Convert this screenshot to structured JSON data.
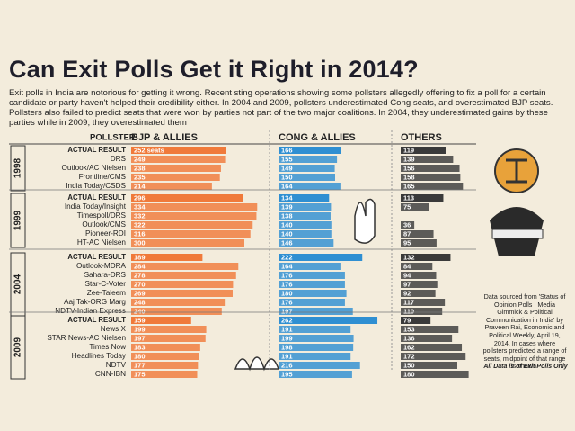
{
  "chart_data": {
    "type": "bar",
    "title": "Can Exit Polls Get it Right in 2014?",
    "subtitle": "Exit polls in India are notorious for getting it wrong. Recent sting operations showing some pollsters allegedly offering to fix a poll for a certain candidate or party haven't helped their credibility either. In 2004 and 2009, pollsters underestimated Cong seats, and overestimated BJP seats. Pollsters also failed to predict seats that were won by parties not part of the two major coalitions. In 2004, they underestimated gains by these parties while in 2009, they overestimated them",
    "column_header": "POLLSTER",
    "series": [
      {
        "name": "BJP & ALLIES",
        "color": "#f07a3a"
      },
      {
        "name": "CONG & ALLIES",
        "color": "#2f8fd2"
      },
      {
        "name": "OTHERS",
        "color": "#3a3a3a"
      }
    ],
    "groups": [
      {
        "label": "1998",
        "rows": [
          {
            "pollster": "ACTUAL RESULT",
            "values": [
              252,
              166,
              119
            ],
            "value_labels": [
              "252 seats",
              "166",
              "119"
            ]
          },
          {
            "pollster": "DRS",
            "values": [
              249,
              155,
              139
            ]
          },
          {
            "pollster": "Outlook/AC Nielsen",
            "values": [
              238,
              149,
              156
            ]
          },
          {
            "pollster": "Frontline/CMS",
            "values": [
              235,
              150,
              158
            ]
          },
          {
            "pollster": "India Today/CSDS",
            "values": [
              214,
              164,
              165
            ]
          }
        ]
      },
      {
        "label": "1999",
        "rows": [
          {
            "pollster": "ACTUAL RESULT",
            "values": [
              296,
              134,
              113
            ]
          },
          {
            "pollster": "India Today/Insight",
            "values": [
              334,
              139,
              75
            ]
          },
          {
            "pollster": "Timespoll/DRS",
            "values": [
              332,
              138,
              null
            ]
          },
          {
            "pollster": "Outlook/CMS",
            "values": [
              322,
              140,
              36
            ]
          },
          {
            "pollster": "Pioneer-RDI",
            "values": [
              316,
              140,
              87
            ]
          },
          {
            "pollster": "HT-AC Nielsen",
            "values": [
              300,
              146,
              95
            ]
          }
        ]
      },
      {
        "label": "2004",
        "rows": [
          {
            "pollster": "ACTUAL RESULT",
            "values": [
              189,
              222,
              132
            ]
          },
          {
            "pollster": "Outlook-MDRA",
            "values": [
              284,
              164,
              84
            ]
          },
          {
            "pollster": "Sahara-DRS",
            "values": [
              278,
              176,
              94
            ]
          },
          {
            "pollster": "Star-C-Voter",
            "values": [
              270,
              176,
              97
            ]
          },
          {
            "pollster": "Zee-Taleem",
            "values": [
              269,
              180,
              92
            ]
          },
          {
            "pollster": "Aaj Tak-ORG Marg",
            "values": [
              248,
              176,
              117
            ]
          },
          {
            "pollster": "NDTV-Indian Express",
            "values": [
              240,
              197,
              110
            ]
          }
        ]
      },
      {
        "label": "2009",
        "rows": [
          {
            "pollster": "ACTUAL RESULT",
            "values": [
              159,
              262,
              79
            ]
          },
          {
            "pollster": "News X",
            "values": [
              199,
              191,
              153
            ]
          },
          {
            "pollster": "STAR News-AC Nielsen",
            "values": [
              197,
              199,
              136
            ]
          },
          {
            "pollster": "Times Now",
            "values": [
              183,
              198,
              162
            ]
          },
          {
            "pollster": "Headlines Today",
            "values": [
              180,
              191,
              172
            ]
          },
          {
            "pollster": "NDTV",
            "values": [
              177,
              216,
              150
            ]
          },
          {
            "pollster": "CNN-IBN",
            "values": [
              175,
              195,
              180
            ]
          }
        ]
      }
    ],
    "note": "Data sourced from 'Status of Opinion Polls : Media Gimmick & Political Communication in India' by Praveen Rai, Economic and Political Weekly, April 19, 2014. In cases where pollsters predicted a range of seats, midpoint of that range is shown.",
    "footnote": "All Data is of Exit Polls Only"
  }
}
